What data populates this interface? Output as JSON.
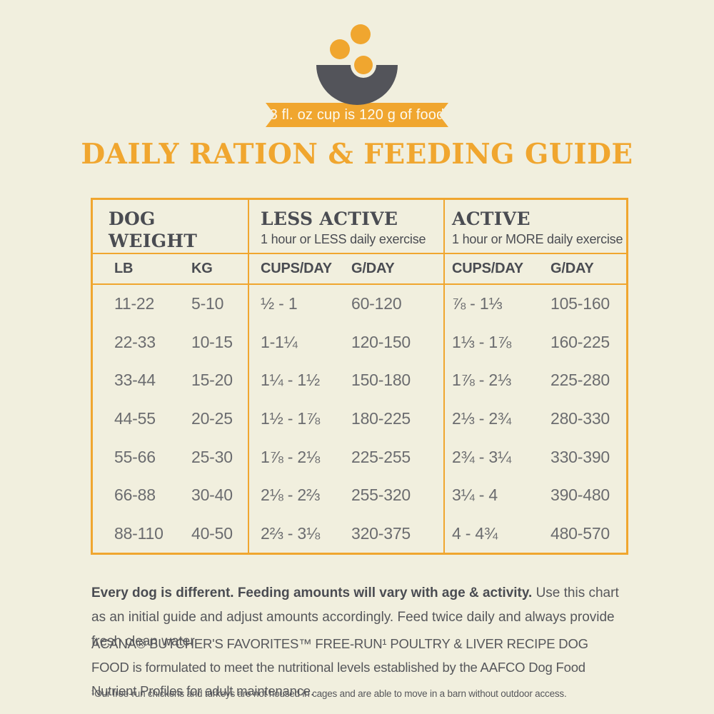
{
  "colors": {
    "background": "#F1EFDE",
    "accent_orange": "#F0A62F",
    "bowl_dark": "#53545A",
    "heading_dark": "#4A4C52",
    "data_gray": "#6B6C6F"
  },
  "badge": {
    "ribbon_text": "8 fl. oz cup is 120 g of food"
  },
  "title": "DAILY RATION & FEEDING GUIDE",
  "chart_data": {
    "type": "table",
    "title": "DAILY RATION & FEEDING GUIDE",
    "column_groups": [
      {
        "label": "DOG WEIGHT",
        "sublabel": "",
        "columns": [
          "LB",
          "KG"
        ]
      },
      {
        "label": "LESS ACTIVE",
        "sublabel": "1 hour or LESS daily exercise",
        "columns": [
          "CUPS/DAY",
          "G/DAY"
        ]
      },
      {
        "label": "ACTIVE",
        "sublabel": "1 hour or MORE daily exercise",
        "columns": [
          "CUPS/DAY",
          "G/DAY"
        ]
      }
    ],
    "rows": [
      [
        "11-22",
        "5-10",
        "½ - 1",
        "60-120",
        "⅞ - 1⅓",
        "105-160"
      ],
      [
        "22-33",
        "10-15",
        "1-1¼",
        "120-150",
        "1⅓ - 1⅞",
        "160-225"
      ],
      [
        "33-44",
        "15-20",
        "1¼ - 1½",
        "150-180",
        "1⅞ - 2⅓",
        "225-280"
      ],
      [
        "44-55",
        "20-25",
        "1½ - 1⅞",
        "180-225",
        "2⅓ - 2¾",
        "280-330"
      ],
      [
        "55-66",
        "25-30",
        "1⅞ - 2⅛",
        "225-255",
        "2¾ - 3¼",
        "330-390"
      ],
      [
        "66-88",
        "30-40",
        "2⅛ - 2⅔",
        "255-320",
        "3¼ - 4",
        "390-480"
      ],
      [
        "88-110",
        "40-50",
        "2⅔ - 3⅛",
        "320-375",
        "4 - 4¾",
        "480-570"
      ]
    ]
  },
  "footer": {
    "note_bold": "Every dog is different. Feeding amounts will vary with age & activity.",
    "note_rest": "Use this chart as an initial guide and adjust amounts accordingly. Feed twice daily and always provide fresh clean water.",
    "formulation": "ACANA® BUTCHER'S FAVORITES™ FREE-RUN¹ POULTRY & LIVER RECIPE DOG FOOD is formulated to meet the nutritional levels established by the AAFCO Dog Food Nutrient Profiles for adult maintenance.",
    "footnote": "¹Our free-run chickens and turkeys are not housed in cages and are able to move in a barn without outdoor access."
  }
}
